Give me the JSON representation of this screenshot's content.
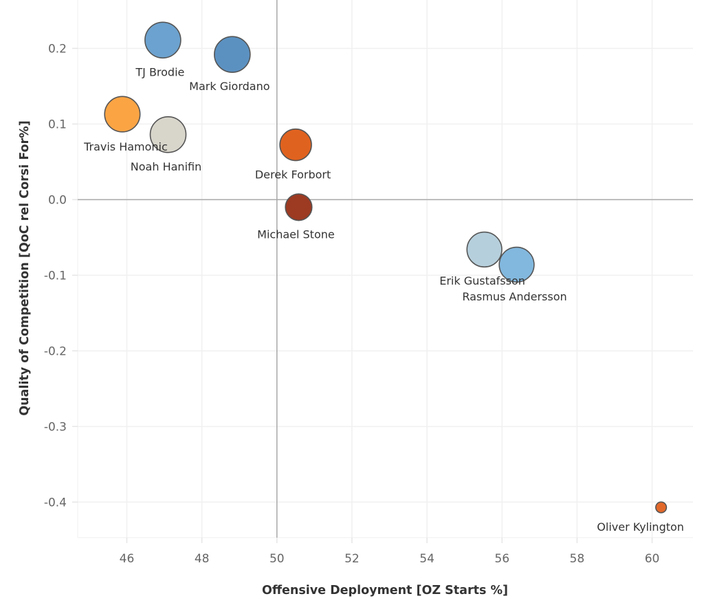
{
  "chart_data": {
    "type": "scatter",
    "title": "",
    "xlabel": "Offensive Deployment [OZ Starts %]",
    "ylabel": "Quality of Competition [QoC rel Corsi For%]",
    "xlim": [
      44.69,
      61.09
    ],
    "ylim": [
      -0.447,
      0.264
    ],
    "x_ticks": [
      46,
      48,
      50,
      52,
      54,
      56,
      58,
      60
    ],
    "x_tick_labels": [
      "46",
      "48",
      "50",
      "52",
      "54",
      "56",
      "58",
      "60"
    ],
    "y_ticks": [
      0.2,
      0.1,
      0.0,
      -0.1,
      -0.2,
      -0.3,
      -0.4
    ],
    "y_tick_labels": [
      "0.2",
      "0.1",
      "0.0",
      "-0.1",
      "-0.2",
      "-0.3",
      "-0.4"
    ],
    "grid": true,
    "reference_lines": {
      "x": 50,
      "y": 0.0
    },
    "legend": "none",
    "size_encoding": "relative",
    "points": [
      {
        "name": "TJ Brodie",
        "x": 46.96,
        "y": 0.211,
        "size": 1.0,
        "color": "#6ca2cf"
      },
      {
        "name": "Mark Giordano",
        "x": 48.81,
        "y": 0.192,
        "size": 1.0,
        "color": "#5b91c1"
      },
      {
        "name": "Travis Hamonic",
        "x": 45.88,
        "y": 0.113,
        "size": 0.98,
        "color": "#fba444"
      },
      {
        "name": "Noah Hanifin",
        "x": 47.1,
        "y": 0.086,
        "size": 1.0,
        "color": "#d8d5cb"
      },
      {
        "name": "Derek Forbort",
        "x": 50.5,
        "y": 0.0725,
        "size": 0.78,
        "color": "#e0621f"
      },
      {
        "name": "Michael Stone",
        "x": 50.58,
        "y": -0.01,
        "size": 0.55,
        "color": "#9c3a22"
      },
      {
        "name": "Erik Gustafsson",
        "x": 55.53,
        "y": -0.066,
        "size": 0.95,
        "color": "#b6cfdc"
      },
      {
        "name": "Rasmus Andersson",
        "x": 56.39,
        "y": -0.086,
        "size": 0.95,
        "color": "#82b8de"
      },
      {
        "name": "Oliver Kylington",
        "x": 60.24,
        "y": -0.407,
        "size": 0.09,
        "color": "#e2682a"
      }
    ]
  }
}
